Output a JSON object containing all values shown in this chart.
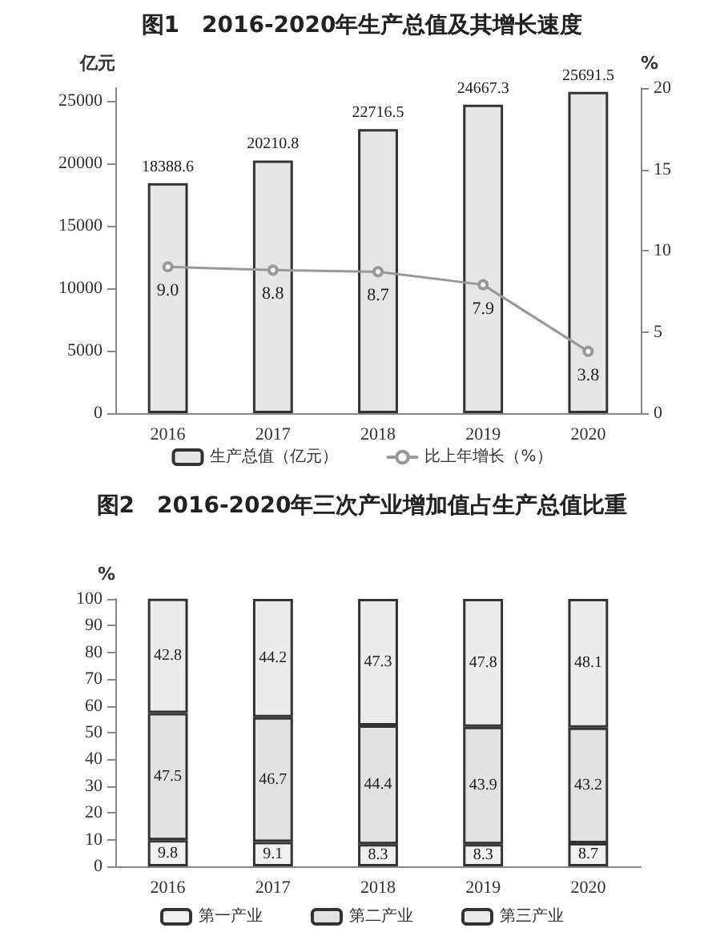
{
  "chart_data": [
    {
      "type": "bar",
      "title": "图1　2016-2020年生产总值及其增长速度",
      "ylabel": "亿元",
      "y2label": "%",
      "categories": [
        "2016",
        "2017",
        "2018",
        "2019",
        "2020"
      ],
      "series": [
        {
          "name": "生产总值（亿元）",
          "color": "#e6e6e6",
          "values": [
            18388.6,
            20210.8,
            22716.5,
            24667.3,
            25691.5
          ]
        },
        {
          "name": "比上年增长（%）",
          "type": "line",
          "axis": "y2",
          "color": "#999999",
          "values": [
            9.0,
            8.8,
            8.7,
            7.9,
            3.8
          ],
          "value_labels": [
            "9.0",
            "8.8",
            "8.7",
            "7.9",
            "3.8"
          ]
        }
      ],
      "ylim": [
        0,
        26000
      ],
      "yticks": [
        0,
        5000,
        10000,
        15000,
        20000,
        25000
      ],
      "y2lim": [
        0,
        20
      ],
      "y2ticks": [
        0,
        5,
        10,
        15,
        20
      ],
      "data_labels": true,
      "legend": "bottom",
      "grid": false,
      "marker": "circle"
    },
    {
      "type": "bar",
      "title": "图2　2016-2020年三次产业增加值占生产总值比重",
      "ylabel": "%",
      "categories": [
        "2016",
        "2017",
        "2018",
        "2019",
        "2020"
      ],
      "stacked": true,
      "series": [
        {
          "name": "第一产业",
          "color": "#f0f0f0",
          "values": [
            9.8,
            9.1,
            8.3,
            8.3,
            8.7
          ]
        },
        {
          "name": "第二产业",
          "color": "#e2e2e2",
          "values": [
            47.5,
            46.7,
            44.4,
            43.9,
            43.2
          ]
        },
        {
          "name": "第三产业",
          "color": "#ececec",
          "values": [
            42.8,
            44.2,
            47.3,
            47.8,
            48.1
          ]
        }
      ],
      "ylim": [
        0,
        100
      ],
      "yticks": [
        0,
        10,
        20,
        30,
        40,
        50,
        60,
        70,
        80,
        90,
        100
      ],
      "data_labels": true,
      "legend": "bottom",
      "grid": false
    }
  ]
}
